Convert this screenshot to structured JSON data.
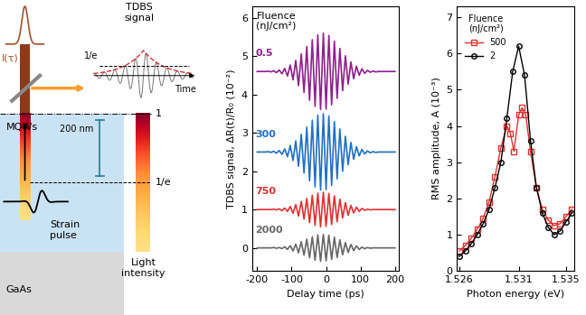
{
  "diagram": {
    "pulse_label": "I(τ)",
    "signal_label": "TDBS\nsignal",
    "signal_level": "1/e",
    "time": "Time",
    "layer": "MQWs",
    "scale": "200 nm",
    "colorbar_top": "1",
    "colorbar_mark": "1/e",
    "colorbar_label": "Light\nintensity",
    "strain": "Strain\npulse",
    "substrate": "GaAs"
  },
  "chart_data": [
    {
      "type": "line",
      "annotation": "Fluence\n(nJ/cm²)",
      "x_label": "Delay time (ps)",
      "y_label": "TDBS signal, ΔR(t)/R₀ (10⁻²)",
      "xlim": [
        -215,
        210
      ],
      "ylim": [
        -0.6,
        6.3
      ],
      "xticks": [
        -200,
        -100,
        0,
        100,
        200
      ],
      "yticks": [
        0,
        1,
        2,
        3,
        4,
        5,
        6
      ],
      "x": [
        -200,
        -192,
        -184,
        -176,
        -168,
        -160,
        -152,
        -144,
        -136,
        -128,
        -120,
        -112,
        -104,
        -96,
        -88,
        -80,
        -72,
        -64,
        -56,
        -48,
        -40,
        -32,
        -24,
        -16,
        -8,
        0,
        8,
        16,
        24,
        32,
        40,
        48,
        56,
        64,
        72,
        80,
        88,
        96,
        104,
        112,
        120,
        128,
        136,
        144,
        152,
        160,
        168,
        176,
        184,
        192,
        200
      ],
      "series": [
        {
          "name": "0.5",
          "color": "#8e1f8e",
          "values": [
            4.6,
            4.6,
            4.6,
            4.6,
            4.61,
            4.59,
            4.62,
            4.57,
            4.64,
            4.54,
            4.68,
            4.48,
            4.77,
            4.38,
            4.89,
            4.23,
            5.06,
            4.05,
            5.25,
            3.85,
            5.43,
            3.69,
            5.56,
            3.61,
            5.6,
            3.62,
            5.54,
            3.73,
            5.39,
            3.9,
            5.2,
            4.1,
            5.01,
            4.27,
            4.85,
            4.41,
            4.74,
            4.5,
            4.67,
            4.55,
            4.63,
            4.58,
            4.61,
            4.59,
            4.6,
            4.6,
            4.6,
            4.6,
            4.6,
            4.6,
            4.6
          ]
        },
        {
          "name": "300",
          "color": "#1f6fc4",
          "values": [
            2.5,
            2.5,
            2.5,
            2.5,
            2.51,
            2.49,
            2.52,
            2.47,
            2.54,
            2.44,
            2.58,
            2.38,
            2.67,
            2.28,
            2.79,
            2.13,
            2.96,
            1.95,
            3.15,
            1.75,
            3.33,
            1.59,
            3.46,
            1.51,
            3.5,
            1.52,
            3.44,
            1.63,
            3.29,
            1.8,
            3.1,
            2.0,
            2.91,
            2.17,
            2.75,
            2.31,
            2.64,
            2.4,
            2.57,
            2.45,
            2.53,
            2.48,
            2.51,
            2.49,
            2.5,
            2.5,
            2.5,
            2.5,
            2.5,
            2.5,
            2.5
          ]
        },
        {
          "name": "750",
          "color": "#e0312f",
          "values": [
            1.0,
            1.0,
            1.0,
            1.0,
            1.0,
            1.0,
            1.01,
            0.99,
            1.02,
            0.97,
            1.04,
            0.95,
            1.08,
            0.9,
            1.13,
            0.83,
            1.21,
            0.75,
            1.29,
            0.66,
            1.37,
            0.59,
            1.43,
            0.55,
            1.45,
            0.56,
            1.42,
            0.61,
            1.36,
            0.68,
            1.27,
            0.78,
            1.18,
            0.85,
            1.11,
            0.91,
            1.06,
            0.95,
            1.03,
            0.98,
            1.01,
            0.99,
            1.0,
            1.0,
            1.0,
            1.0,
            1.0,
            1.0,
            1.0,
            1.0,
            1.0
          ]
        },
        {
          "name": "2000",
          "color": "#666666",
          "values": [
            0,
            0,
            0,
            0,
            0,
            0,
            0.01,
            -0.01,
            0.01,
            -0.02,
            0.03,
            -0.04,
            0.06,
            -0.08,
            0.1,
            -0.13,
            0.16,
            -0.19,
            0.23,
            -0.26,
            0.29,
            -0.32,
            0.34,
            -0.35,
            0.35,
            -0.34,
            0.33,
            -0.3,
            0.28,
            -0.25,
            0.21,
            -0.18,
            0.14,
            -0.12,
            0.09,
            -0.07,
            0.05,
            -0.04,
            0.02,
            -0.02,
            0.01,
            -0.01,
            0,
            0,
            0,
            0,
            0,
            0,
            0,
            0,
            0
          ]
        }
      ]
    },
    {
      "type": "line",
      "legend_title": "Fluence\n(nJ/cm²)",
      "legend": "upper left",
      "x_label": "Photon energy (eV)",
      "y_label": "RMS amplitude, A (10⁻³)",
      "xlim": [
        1.5258,
        1.5357
      ],
      "ylim": [
        0,
        7.3
      ],
      "xticks": [
        1.526,
        1.531,
        1.535
      ],
      "yticks": [
        0,
        1,
        2,
        3,
        4,
        5,
        6,
        7
      ],
      "series": [
        {
          "name": "500",
          "color": "#e0312f",
          "marker": "square",
          "line_style": "solid",
          "x": [
            1.526,
            1.5265,
            1.527,
            1.5275,
            1.528,
            1.5285,
            1.529,
            1.5295,
            1.53,
            1.5303,
            1.5306,
            1.531,
            1.5313,
            1.5316,
            1.532,
            1.5325,
            1.533,
            1.5335,
            1.534,
            1.5345,
            1.535,
            1.5355
          ],
          "values": [
            0.55,
            0.7,
            0.9,
            1.15,
            1.45,
            1.9,
            2.6,
            3.4,
            4.0,
            3.8,
            3.3,
            4.3,
            4.5,
            4.3,
            3.3,
            2.3,
            1.7,
            1.4,
            1.25,
            1.3,
            1.5,
            1.7
          ]
        },
        {
          "name": "2",
          "color": "#000000",
          "marker": "circle",
          "line_style": "solid",
          "x": [
            1.526,
            1.5265,
            1.527,
            1.5275,
            1.528,
            1.5285,
            1.529,
            1.5295,
            1.53,
            1.5305,
            1.531,
            1.5315,
            1.532,
            1.5325,
            1.533,
            1.5335,
            1.534,
            1.5345,
            1.535,
            1.5355
          ],
          "values": [
            0.4,
            0.55,
            0.75,
            1.0,
            1.3,
            1.7,
            2.3,
            3.0,
            4.2,
            5.5,
            6.2,
            5.4,
            3.6,
            2.3,
            1.6,
            1.2,
            1.0,
            1.1,
            1.35,
            1.6
          ]
        }
      ]
    }
  ]
}
